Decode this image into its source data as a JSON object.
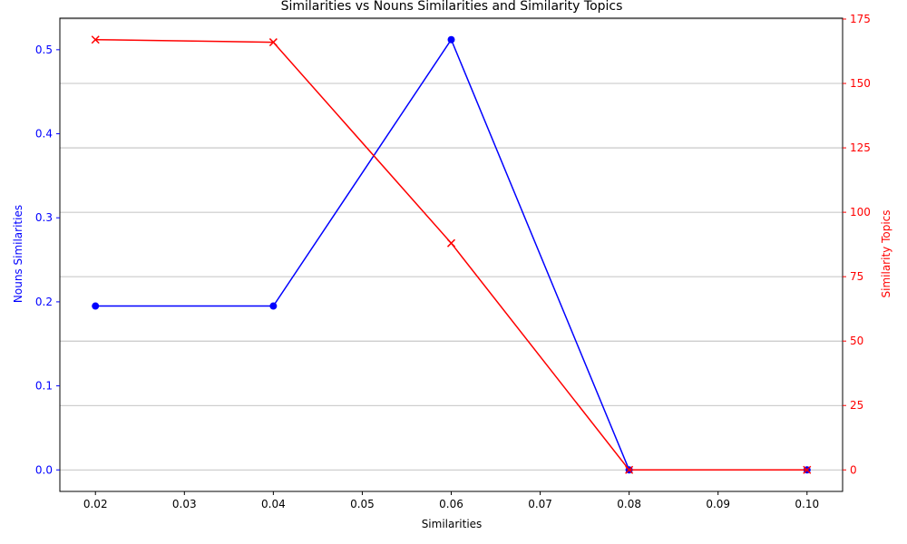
{
  "chart_data": {
    "type": "line",
    "title": "Similarities vs Nouns Similarities and Similarity Topics",
    "xlabel": "Similarities",
    "x": [
      0.02,
      0.04,
      0.06,
      0.08,
      0.1
    ],
    "xlim": [
      0.016,
      0.104
    ],
    "xticks": [
      "0.02",
      "0.03",
      "0.04",
      "0.05",
      "0.06",
      "0.07",
      "0.08",
      "0.09",
      "0.10"
    ],
    "series": [
      {
        "name": "Nouns Similarities",
        "axis": "left",
        "color": "#0000ff",
        "marker": "circle",
        "values": [
          0.195,
          0.195,
          0.512,
          0.0,
          0.0
        ]
      },
      {
        "name": "Similarity Topics",
        "axis": "right",
        "color": "#ff0000",
        "marker": "x",
        "values": [
          167,
          166,
          88,
          0,
          0
        ]
      }
    ],
    "y_left": {
      "label": "Nouns Similarities",
      "color": "#0000ff",
      "ylim": [
        -0.0256,
        0.5376
      ],
      "ticks": [
        "0.0",
        "0.1",
        "0.2",
        "0.3",
        "0.4",
        "0.5"
      ]
    },
    "y_right": {
      "label": "Similarity Topics",
      "color": "#ff0000",
      "ylim": [
        -8.35,
        175.35
      ],
      "ticks": [
        "0",
        "25",
        "50",
        "75",
        "100",
        "125",
        "150",
        "175"
      ]
    },
    "grid": "horizontal, right-axis ticks"
  }
}
